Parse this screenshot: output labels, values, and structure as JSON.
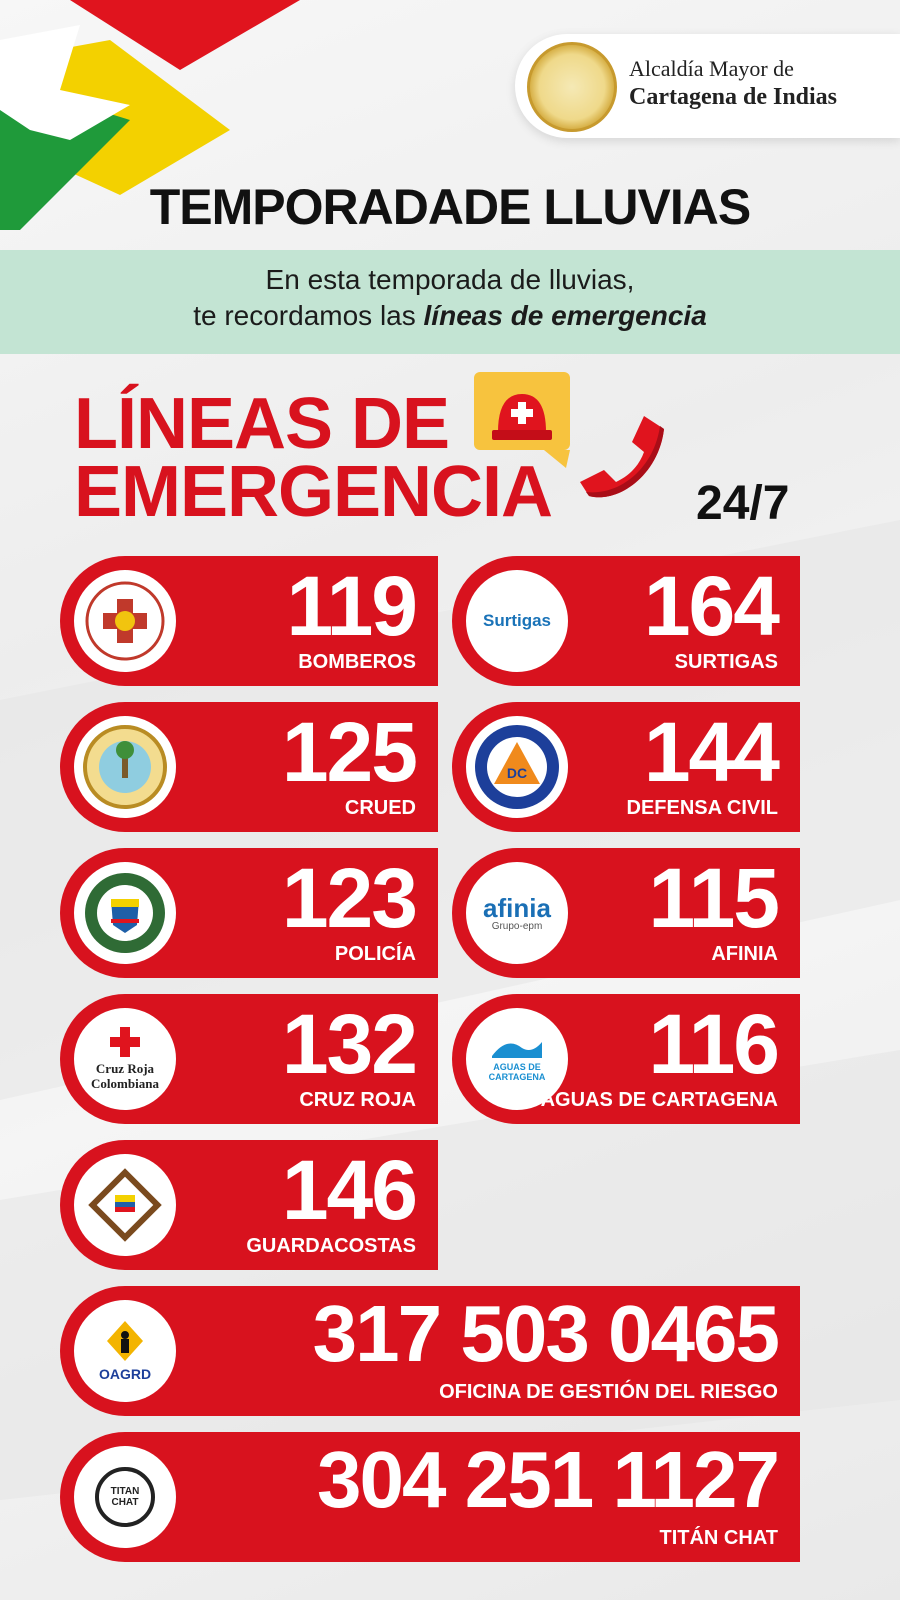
{
  "header": {
    "brand_line1": "Alcaldía Mayor de",
    "brand_line2": "Cartagena de Indias"
  },
  "title": "TEMPORADADE LLUVIAS",
  "intro": {
    "line1": "En esta temporada de lluvias,",
    "line2_prefix": "te recordamos las ",
    "line2_emphasis": "líneas de emergencia"
  },
  "emergency": {
    "title_line1": "LÍNEAS DE",
    "title_line2": "EMERGENCIA",
    "hours": "24/7"
  },
  "lines": [
    {
      "number": "119",
      "label": "BOMBEROS",
      "icon": "bomberos-logo-icon"
    },
    {
      "number": "164",
      "label": "SURTIGAS",
      "icon": "surtigas-logo-icon",
      "logo_text": "Surtigas"
    },
    {
      "number": "125",
      "label": "CRUED",
      "icon": "cartagena-seal-icon"
    },
    {
      "number": "144",
      "label": "DEFENSA CIVIL",
      "icon": "defensa-civil-logo-icon",
      "logo_text": "DC"
    },
    {
      "number": "123",
      "label": "POLICÍA",
      "icon": "policia-logo-icon"
    },
    {
      "number": "115",
      "label": "AFINIA",
      "icon": "afinia-logo-icon",
      "logo_text": "afinia",
      "logo_sub": "Grupo-epm"
    },
    {
      "number": "132",
      "label": "CRUZ ROJA",
      "icon": "cruz-roja-logo-icon",
      "logo_text": "Cruz Roja Colombiana"
    },
    {
      "number": "116",
      "label": "AGUAS DE CARTAGENA",
      "icon": "aguas-de-cartagena-logo-icon",
      "logo_text": "AGUAS DE CARTAGENA"
    },
    {
      "number": "146",
      "label": "GUARDACOSTAS",
      "icon": "guardacostas-logo-icon"
    },
    {
      "number": "317 503 0465",
      "label": "OFICINA DE GESTIÓN DEL RIESGO",
      "icon": "oagrd-logo-icon",
      "logo_text": "OAGRD"
    },
    {
      "number": "304 251 1127",
      "label": "TITÁN CHAT",
      "icon": "titan-chat-logo-icon",
      "logo_text": "TITAN CHAT"
    }
  ],
  "colors": {
    "red": "#d8121e",
    "green_band": "#c3e4d3",
    "flag_green": "#1f9a3a",
    "flag_yellow": "#f3d100",
    "flag_red": "#e0141e"
  }
}
